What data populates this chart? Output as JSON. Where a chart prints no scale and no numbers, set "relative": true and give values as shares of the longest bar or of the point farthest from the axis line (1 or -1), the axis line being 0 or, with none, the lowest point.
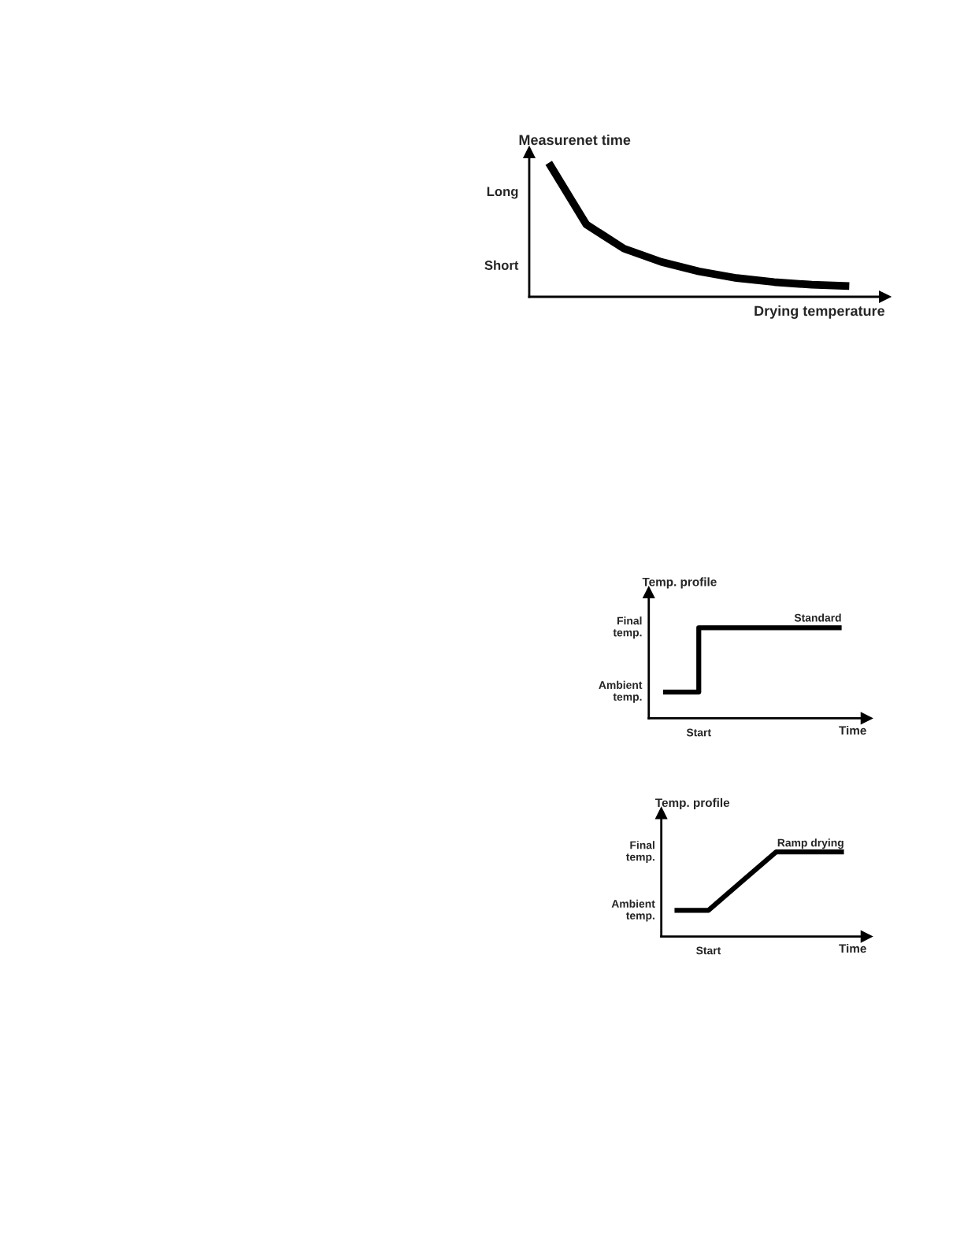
{
  "chart_data": [
    {
      "type": "line",
      "relative": true,
      "xlabel": "Drying temperature",
      "ylabel": "Measurenet time",
      "grid": false,
      "legend": false,
      "marker": "none",
      "line_style": "solid",
      "categories": [
        null,
        null,
        null,
        null,
        null,
        null,
        null,
        null,
        null
      ],
      "annotations": [
        "Long",
        "Short"
      ],
      "series": [
        {
          "color": "#000000",
          "values": [
            1,
            0.54,
            0.36,
            0.26,
            0.19,
            0.14,
            0.11,
            0.09,
            0.08
          ]
        }
      ]
    },
    {
      "type": "step",
      "relative": true,
      "xlabel": "Time",
      "ylabel": "Temp. profile",
      "grid": false,
      "legend": false,
      "marker": "none",
      "line_style": "solid",
      "categories": [
        null,
        null,
        null,
        null,
        null,
        null
      ],
      "annotations": [
        "Start",
        "Final\ntemp.",
        "Ambient\ntemp.",
        "Standard"
      ],
      "series": [
        {
          "color": "#000000",
          "values": [
            0.29,
            1,
            1,
            1,
            1,
            1
          ]
        }
      ]
    },
    {
      "type": "line",
      "relative": true,
      "xlabel": "Time",
      "ylabel": "Temp. profile",
      "grid": false,
      "legend": false,
      "marker": "none",
      "line_style": "solid",
      "categories": [
        null,
        null,
        null,
        null,
        null,
        null
      ],
      "annotations": [
        "Start",
        "Final\ntemp.",
        "Ambient\ntemp.",
        "Ramp drying"
      ],
      "series": [
        {
          "color": "#000000",
          "values": [
            0.31,
            0.31,
            0.655,
            1,
            1,
            1
          ]
        }
      ]
    }
  ]
}
